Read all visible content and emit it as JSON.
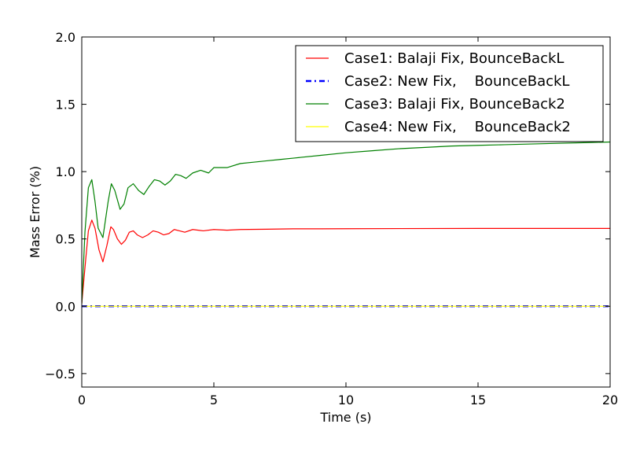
{
  "chart_data": {
    "type": "line",
    "title": "",
    "xlabel": "Time (s)",
    "ylabel": "Mass Error (%)",
    "xlim": [
      0,
      20
    ],
    "ylim": [
      -0.6,
      2.0
    ],
    "x_ticks": [
      0,
      5,
      10,
      15,
      20
    ],
    "x_tick_labels": [
      "0",
      "5",
      "10",
      "15",
      "20"
    ],
    "y_ticks": [
      -0.5,
      0.0,
      0.5,
      1.0,
      1.5,
      2.0
    ],
    "y_tick_labels": [
      "−0.5",
      "0.0",
      "0.5",
      "1.0",
      "1.5",
      "2.0"
    ],
    "grid": false,
    "legend_position": "top-right",
    "series": [
      {
        "name": "Case1: Balaji Fix, BounceBackL",
        "color": "#ff0000",
        "style": "solid",
        "x": [
          0,
          0.15,
          0.25,
          0.38,
          0.5,
          0.65,
          0.8,
          0.95,
          1.1,
          1.2,
          1.35,
          1.5,
          1.65,
          1.8,
          1.95,
          2.1,
          2.3,
          2.5,
          2.7,
          2.9,
          3.1,
          3.3,
          3.5,
          3.7,
          3.9,
          4.2,
          4.6,
          5.0,
          5.5,
          6.0,
          7.0,
          8.0,
          9.0,
          10.0,
          12.0,
          15.0,
          17.5,
          20.0
        ],
        "y": [
          0.02,
          0.35,
          0.56,
          0.64,
          0.58,
          0.42,
          0.33,
          0.45,
          0.59,
          0.57,
          0.5,
          0.46,
          0.49,
          0.55,
          0.56,
          0.53,
          0.51,
          0.53,
          0.56,
          0.55,
          0.53,
          0.54,
          0.57,
          0.56,
          0.55,
          0.57,
          0.56,
          0.57,
          0.565,
          0.57,
          0.572,
          0.575,
          0.575,
          0.576,
          0.577,
          0.578,
          0.578,
          0.578
        ]
      },
      {
        "name": "Case2: New Fix,    BounceBackL",
        "color": "#0000ff",
        "style": "dashdot",
        "x": [
          0,
          20
        ],
        "y": [
          0.0,
          0.0
        ]
      },
      {
        "name": "Case3: Balaji Fix, BounceBack2",
        "color": "#008000",
        "style": "solid",
        "x": [
          0,
          0.12,
          0.25,
          0.38,
          0.5,
          0.62,
          0.8,
          1.0,
          1.12,
          1.25,
          1.45,
          1.6,
          1.75,
          1.95,
          2.15,
          2.35,
          2.55,
          2.75,
          2.95,
          3.15,
          3.35,
          3.55,
          3.75,
          3.95,
          4.2,
          4.5,
          4.8,
          5.0,
          5.5,
          6.0,
          6.5,
          7.0,
          7.5,
          8.0,
          9.0,
          10.0,
          11.0,
          12.0,
          13.0,
          14.0,
          15.0,
          16.0,
          17.0,
          18.0,
          19.0,
          20.0
        ],
        "y": [
          0.02,
          0.55,
          0.88,
          0.94,
          0.78,
          0.58,
          0.51,
          0.78,
          0.91,
          0.86,
          0.72,
          0.76,
          0.88,
          0.91,
          0.86,
          0.83,
          0.89,
          0.94,
          0.93,
          0.9,
          0.93,
          0.98,
          0.97,
          0.95,
          0.99,
          1.01,
          0.99,
          1.03,
          1.03,
          1.06,
          1.07,
          1.08,
          1.09,
          1.1,
          1.12,
          1.14,
          1.155,
          1.17,
          1.18,
          1.19,
          1.195,
          1.2,
          1.205,
          1.21,
          1.215,
          1.22
        ]
      },
      {
        "name": "Case4: New Fix,    BounceBack2",
        "color": "#ffff00",
        "style": "solid",
        "x": [
          0,
          20
        ],
        "y": [
          0.0,
          0.0
        ]
      }
    ]
  }
}
